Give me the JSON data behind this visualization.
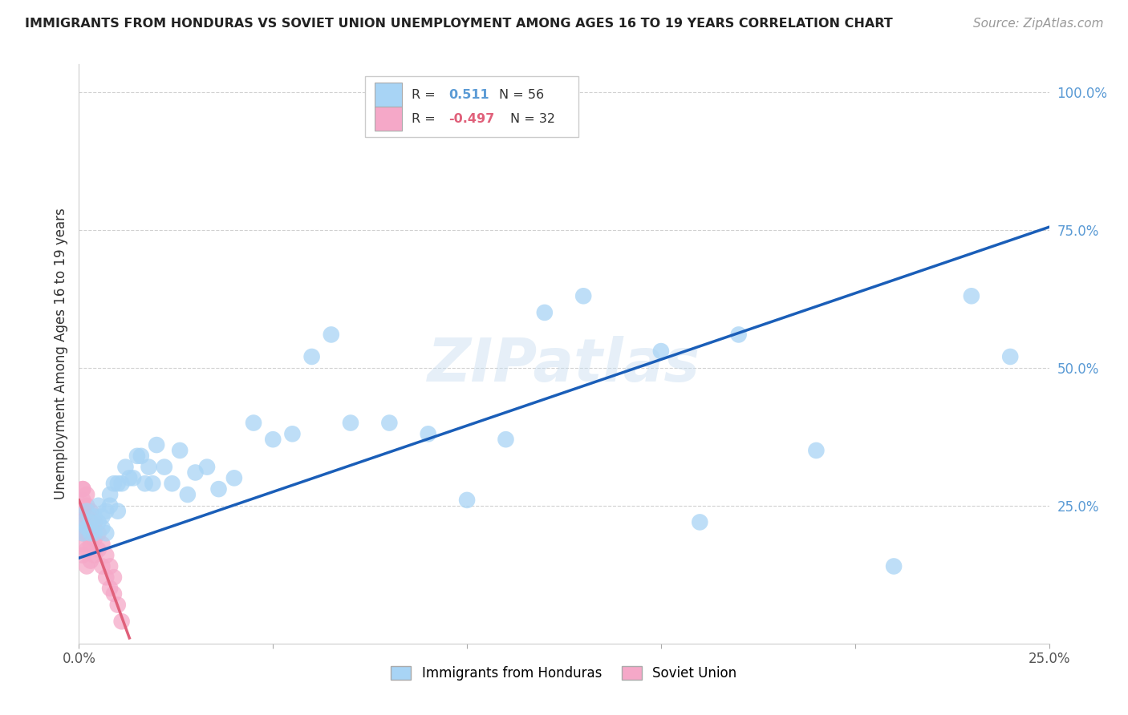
{
  "title": "IMMIGRANTS FROM HONDURAS VS SOVIET UNION UNEMPLOYMENT AMONG AGES 16 TO 19 YEARS CORRELATION CHART",
  "source": "Source: ZipAtlas.com",
  "ylabel": "Unemployment Among Ages 16 to 19 years",
  "xlim": [
    0.0,
    0.25
  ],
  "ylim": [
    0.0,
    1.05
  ],
  "xticks": [
    0.0,
    0.05,
    0.1,
    0.15,
    0.2,
    0.25
  ],
  "yticks": [
    0.25,
    0.5,
    0.75,
    1.0
  ],
  "xticklabels": [
    "0.0%",
    "",
    "",
    "",
    "",
    "25.0%"
  ],
  "yticklabels": [
    "25.0%",
    "50.0%",
    "75.0%",
    "100.0%"
  ],
  "honduras_color": "#a8d4f5",
  "soviet_color": "#f5a8c8",
  "line_color_honduras": "#1a5eb8",
  "line_color_soviet": "#e0607a",
  "watermark": "ZIPatlas",
  "background_color": "#ffffff",
  "honduras_x": [
    0.001,
    0.001,
    0.002,
    0.002,
    0.003,
    0.003,
    0.004,
    0.004,
    0.005,
    0.005,
    0.006,
    0.006,
    0.007,
    0.007,
    0.008,
    0.008,
    0.009,
    0.01,
    0.01,
    0.011,
    0.012,
    0.013,
    0.014,
    0.015,
    0.016,
    0.017,
    0.018,
    0.019,
    0.02,
    0.022,
    0.024,
    0.026,
    0.028,
    0.03,
    0.033,
    0.036,
    0.04,
    0.045,
    0.05,
    0.055,
    0.06,
    0.065,
    0.07,
    0.08,
    0.09,
    0.1,
    0.11,
    0.12,
    0.13,
    0.15,
    0.16,
    0.17,
    0.19,
    0.21,
    0.23,
    0.24
  ],
  "honduras_y": [
    0.22,
    0.2,
    0.24,
    0.21,
    0.22,
    0.2,
    0.23,
    0.2,
    0.22,
    0.25,
    0.23,
    0.21,
    0.24,
    0.2,
    0.25,
    0.27,
    0.29,
    0.24,
    0.29,
    0.29,
    0.32,
    0.3,
    0.3,
    0.34,
    0.34,
    0.29,
    0.32,
    0.29,
    0.36,
    0.32,
    0.29,
    0.35,
    0.27,
    0.31,
    0.32,
    0.28,
    0.3,
    0.4,
    0.37,
    0.38,
    0.52,
    0.56,
    0.4,
    0.4,
    0.38,
    0.26,
    0.37,
    0.6,
    0.63,
    0.53,
    0.22,
    0.56,
    0.35,
    0.14,
    0.63,
    0.52
  ],
  "soviet_x": [
    0.001,
    0.001,
    0.001,
    0.001,
    0.001,
    0.001,
    0.001,
    0.001,
    0.002,
    0.002,
    0.002,
    0.002,
    0.002,
    0.002,
    0.003,
    0.003,
    0.003,
    0.003,
    0.004,
    0.004,
    0.004,
    0.005,
    0.005,
    0.006,
    0.006,
    0.007,
    0.007,
    0.008,
    0.008,
    0.009,
    0.009,
    0.01,
    0.011
  ],
  "soviet_y": [
    0.28,
    0.26,
    0.24,
    0.22,
    0.2,
    0.18,
    0.16,
    0.28,
    0.27,
    0.25,
    0.23,
    0.2,
    0.17,
    0.14,
    0.24,
    0.21,
    0.18,
    0.15,
    0.22,
    0.19,
    0.16,
    0.2,
    0.17,
    0.18,
    0.14,
    0.16,
    0.12,
    0.14,
    0.1,
    0.12,
    0.09,
    0.07,
    0.04
  ],
  "line_honduras_x0": 0.0,
  "line_honduras_y0": 0.155,
  "line_honduras_x1": 0.25,
  "line_honduras_y1": 0.755,
  "line_soviet_x0": 0.0,
  "line_soviet_y0": 0.26,
  "line_soviet_x1": 0.013,
  "line_soviet_y1": 0.01
}
